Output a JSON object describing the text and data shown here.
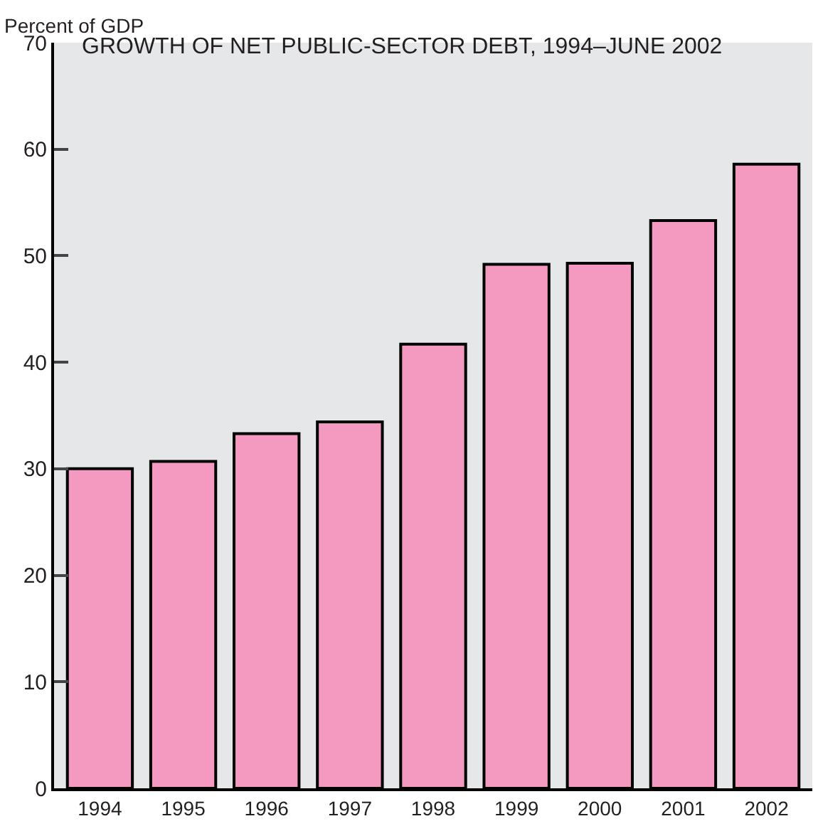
{
  "chart_data": {
    "type": "bar",
    "title": "GROWTH OF NET PUBLIC-SECTOR DEBT, 1994–JUNE 2002",
    "ylabel": "Percent of GDP",
    "categories": [
      "1994",
      "1995",
      "1996",
      "1997",
      "1998",
      "1999",
      "2000",
      "2001",
      "2002"
    ],
    "values": [
      30.0,
      30.7,
      33.3,
      34.4,
      41.7,
      49.2,
      49.3,
      53.3,
      58.6
    ],
    "color": "#f49ac1",
    "ylim": [
      0,
      70
    ],
    "yticks": [
      0,
      10,
      20,
      30,
      40,
      50,
      60,
      70
    ],
    "grid": false,
    "legend": false
  }
}
